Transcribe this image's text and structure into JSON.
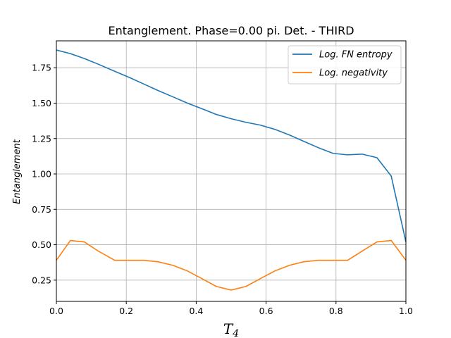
{
  "chart_data": {
    "type": "line",
    "title": "Entanglement. Phase=0.00 pi. Det. - THIRD",
    "xlabel": "T",
    "xlabel_sub": "4",
    "ylabel": "Entanglement",
    "xlim": [
      0,
      1
    ],
    "ylim": [
      0.1,
      1.94
    ],
    "xticks": [
      0.0,
      0.2,
      0.4,
      0.6,
      0.8,
      1.0
    ],
    "xtick_labels": [
      "0.0",
      "0.2",
      "0.4",
      "0.6",
      "0.8",
      "1.0"
    ],
    "yticks": [
      0.25,
      0.5,
      0.75,
      1.0,
      1.25,
      1.5,
      1.75
    ],
    "ytick_labels": [
      "0.25",
      "0.50",
      "0.75",
      "1.00",
      "1.25",
      "1.50",
      "1.75"
    ],
    "grid": true,
    "legend_position": "upper right",
    "x": [
      0.0,
      0.04,
      0.08,
      0.12,
      0.167,
      0.21,
      0.25,
      0.29,
      0.333,
      0.375,
      0.417,
      0.458,
      0.5,
      0.542,
      0.583,
      0.625,
      0.667,
      0.708,
      0.75,
      0.792,
      0.833,
      0.875,
      0.917,
      0.958,
      1.0
    ],
    "series": [
      {
        "name": "Log. FN entropy",
        "color": "#1f77b4",
        "values": [
          1.875,
          1.85,
          1.815,
          1.775,
          1.725,
          1.68,
          1.635,
          1.59,
          1.545,
          1.5,
          1.46,
          1.42,
          1.39,
          1.365,
          1.345,
          1.315,
          1.275,
          1.23,
          1.185,
          1.145,
          1.135,
          1.14,
          1.115,
          0.985,
          0.52
        ]
      },
      {
        "name": "Log. negativity",
        "color": "#ff7f0e",
        "values": [
          0.39,
          0.53,
          0.52,
          0.455,
          0.39,
          0.39,
          0.39,
          0.38,
          0.355,
          0.315,
          0.26,
          0.205,
          0.18,
          0.205,
          0.26,
          0.315,
          0.355,
          0.38,
          0.39,
          0.39,
          0.39,
          0.455,
          0.52,
          0.53,
          0.39
        ]
      }
    ]
  }
}
